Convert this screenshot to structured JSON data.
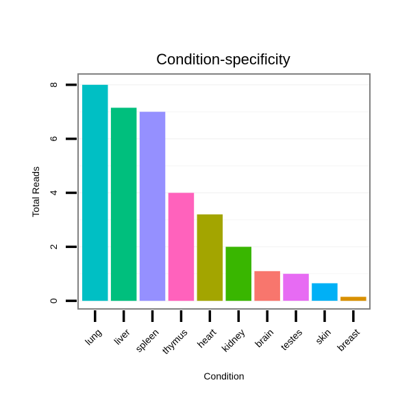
{
  "chart_data": {
    "type": "bar",
    "title": "Condition-specificity",
    "xlabel": "Condition",
    "ylabel": "Total Reads",
    "ylim": [
      -0.3,
      8.4
    ],
    "yticks": [
      0,
      2,
      4,
      6,
      8
    ],
    "ytick_labels": [
      "0",
      "2",
      "4",
      "6",
      "8"
    ],
    "grid": true,
    "legend": "none",
    "categories": [
      "lung",
      "liver",
      "spleen",
      "thymus",
      "heart",
      "kidney",
      "brain",
      "testes",
      "skin",
      "breast"
    ],
    "values": [
      8.0,
      7.15,
      7.0,
      4.0,
      3.2,
      2.0,
      1.1,
      1.0,
      0.65,
      0.15
    ],
    "colors": [
      "#00BFC4",
      "#00BF7D",
      "#9590FF",
      "#FF62BC",
      "#A3A500",
      "#39B600",
      "#F8766D",
      "#E76BF3",
      "#00B0F6",
      "#D89000"
    ]
  }
}
